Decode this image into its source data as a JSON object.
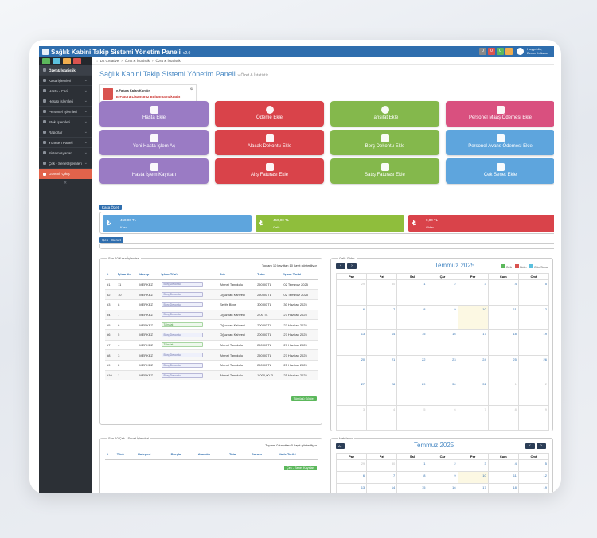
{
  "app": {
    "title": "Sağlık Kabini Takip Sistemi Yönetim Paneli",
    "version": "v2.0",
    "user_line1": "Hoşgeldin,",
    "user_line2": "Demo Kullanıcı",
    "notif1": "0",
    "notif2": "0",
    "notif3": "0"
  },
  "sidebar": {
    "items": [
      {
        "label": "Özet & İstatistik",
        "active": true
      },
      {
        "label": "Kasa İşlemleri"
      },
      {
        "label": "Hasta - Cari"
      },
      {
        "label": "Hesap İşlemleri"
      },
      {
        "label": "Personel İşlemleri"
      },
      {
        "label": "Stok İşlemleri"
      },
      {
        "label": "Raporlar"
      },
      {
        "label": "Yöneten Paneli"
      },
      {
        "label": "Sistem Ayarları"
      },
      {
        "label": "Çek - Senet İşlemleri"
      }
    ],
    "logout": "Güvenli Çıkış"
  },
  "breadcrumb": [
    "Dit Creative",
    "Özet & İstatistik",
    "Özet & İstatistik"
  ],
  "page": {
    "title": "Sağlık Kabini Takip Sistemi Yönetim Paneli",
    "subtitle": "» Özet & İstatistik"
  },
  "alert": {
    "title": "e-Fatura Kalan Kontör",
    "message": "E-Fatura Lisansınız Bulunmamaktadır!"
  },
  "buttons": [
    {
      "label": "Hasta Ekle",
      "color": "purple"
    },
    {
      "label": "Ödeme Ekle",
      "color": "red"
    },
    {
      "label": "Tahsilat Ekle",
      "color": "green"
    },
    {
      "label": "Personel Maaş Ödemesi Ekle",
      "color": "pink"
    },
    {
      "label": "Yeni Hasta İşlem Aç",
      "color": "purple"
    },
    {
      "label": "Alacak Dekontu Ekle",
      "color": "red"
    },
    {
      "label": "Borç Dekontu Ekle",
      "color": "green"
    },
    {
      "label": "Personel Avans Ödemesi Ekle",
      "color": "blue"
    },
    {
      "label": "Hasta İşlem Kayıtları",
      "color": "purple"
    },
    {
      "label": "Alış Faturası Ekle",
      "color": "red"
    },
    {
      "label": "Satış Faturası Ekle",
      "color": "green"
    },
    {
      "label": "Çek Senet Ekle",
      "color": "blue"
    }
  ],
  "kasa": {
    "label": "Kasa Özeti",
    "boxes": [
      {
        "value": "450,00 TL",
        "label": "Kasa",
        "color": "#5ea5dd"
      },
      {
        "value": "450,00 TL",
        "label": "Gelir",
        "color": "#8fbe3c"
      },
      {
        "value": "0,00 TL",
        "label": "Gider",
        "color": "#d9434a"
      }
    ],
    "currency_icon": "₺"
  },
  "cek_label": "Çek - Senet",
  "kasa_table": {
    "title": "Son 10 Kasa İşlemleri",
    "info": "Toplam 10 kayıttan 10 kayıt gösteriliyor",
    "headers": [
      "#",
      "İşlem No",
      "Hesap",
      "İşlem Türü",
      "Adı",
      "Tutar",
      "İşlem Tarihi"
    ],
    "rows": [
      [
        "#1",
        "11",
        "MERKEZ",
        "Borç Dekontu",
        "Ahmet Tanrıkulu",
        "250,00 TL",
        "02 Temmuz 2025"
      ],
      [
        "#2",
        "10",
        "MERKEZ",
        "Borç Dekontu",
        "Oğuzhan Kahveci",
        "250,00 TL",
        "02 Temmuz 2025"
      ],
      [
        "#3",
        "8",
        "MERKEZ",
        "Borç Dekontu",
        "Şerife Bilge",
        "300,00 TL",
        "30 Haziran 2025"
      ],
      [
        "#4",
        "7",
        "MERKEZ",
        "Borç Dekontu",
        "Oğuzhan Kahveci",
        "2,00 TL",
        "27 Haziran 2025"
      ],
      [
        "#5",
        "6",
        "MERKEZ",
        "Tahsilat",
        "Oğuzhan Kahveci",
        "200,00 TL",
        "27 Haziran 2025"
      ],
      [
        "#6",
        "5",
        "MERKEZ",
        "Borç Dekontu",
        "Oğuzhan Kahveci",
        "200,00 TL",
        "27 Haziran 2025"
      ],
      [
        "#7",
        "4",
        "MERKEZ",
        "Tahsilat",
        "Ahmet Tanrıkulu",
        "250,00 TL",
        "27 Haziran 2025"
      ],
      [
        "#8",
        "3",
        "MERKEZ",
        "Borç Dekontu",
        "Ahmet Tanrıkulu",
        "250,00 TL",
        "27 Haziran 2025"
      ],
      [
        "#9",
        "2",
        "MERKEZ",
        "Borç Dekontu",
        "Ahmet Tanrıkulu",
        "250,00 TL",
        "25 Haziran 2025"
      ],
      [
        "#10",
        "1",
        "MERKEZ",
        "Borç Dekontu",
        "Ahmet Tanrıkulu",
        "1.000,00 TL",
        "25 Haziran 2025"
      ]
    ],
    "button": "Tümünü Göster"
  },
  "cek_table": {
    "title": "Son 10 Çek - Senet İşlemleri",
    "info": "Toplam 0 kayıttan 0 kayıt gösteriliyor",
    "headers": [
      "#",
      "Türü",
      "Kategori",
      "Borçlu",
      "Alacaklı",
      "Tutar",
      "Durum",
      "Vade Tarihi"
    ],
    "button": "Çek - Senet Kayıtları"
  },
  "calendar1": {
    "label": "Gelir-Gider",
    "title": "Temmuz 2025",
    "legend": [
      "Gelir",
      "Gider",
      "Gün Sonu"
    ],
    "days": [
      "Paz",
      "Pzt",
      "Sal",
      "Çar",
      "Per",
      "Cum",
      "Cmt"
    ]
  },
  "calendar2": {
    "label": "Hatırlatıcı",
    "title": "Temmuz 2025",
    "ay": "Ay",
    "days": [
      "Paz",
      "Pzt",
      "Sal",
      "Çar",
      "Per",
      "Cum",
      "Cmt"
    ]
  },
  "cal_cells": [
    [
      "29",
      "30",
      "1",
      "2",
      "3",
      "4",
      "5"
    ],
    [
      "6",
      "7",
      "8",
      "9",
      "10",
      "11",
      "12"
    ],
    [
      "13",
      "14",
      "15",
      "16",
      "17",
      "18",
      "19"
    ],
    [
      "20",
      "21",
      "22",
      "23",
      "24",
      "25",
      "26"
    ],
    [
      "27",
      "28",
      "29",
      "30",
      "31",
      "1",
      "2"
    ],
    [
      "3",
      "4",
      "5",
      "6",
      "7",
      "8",
      "9"
    ]
  ]
}
